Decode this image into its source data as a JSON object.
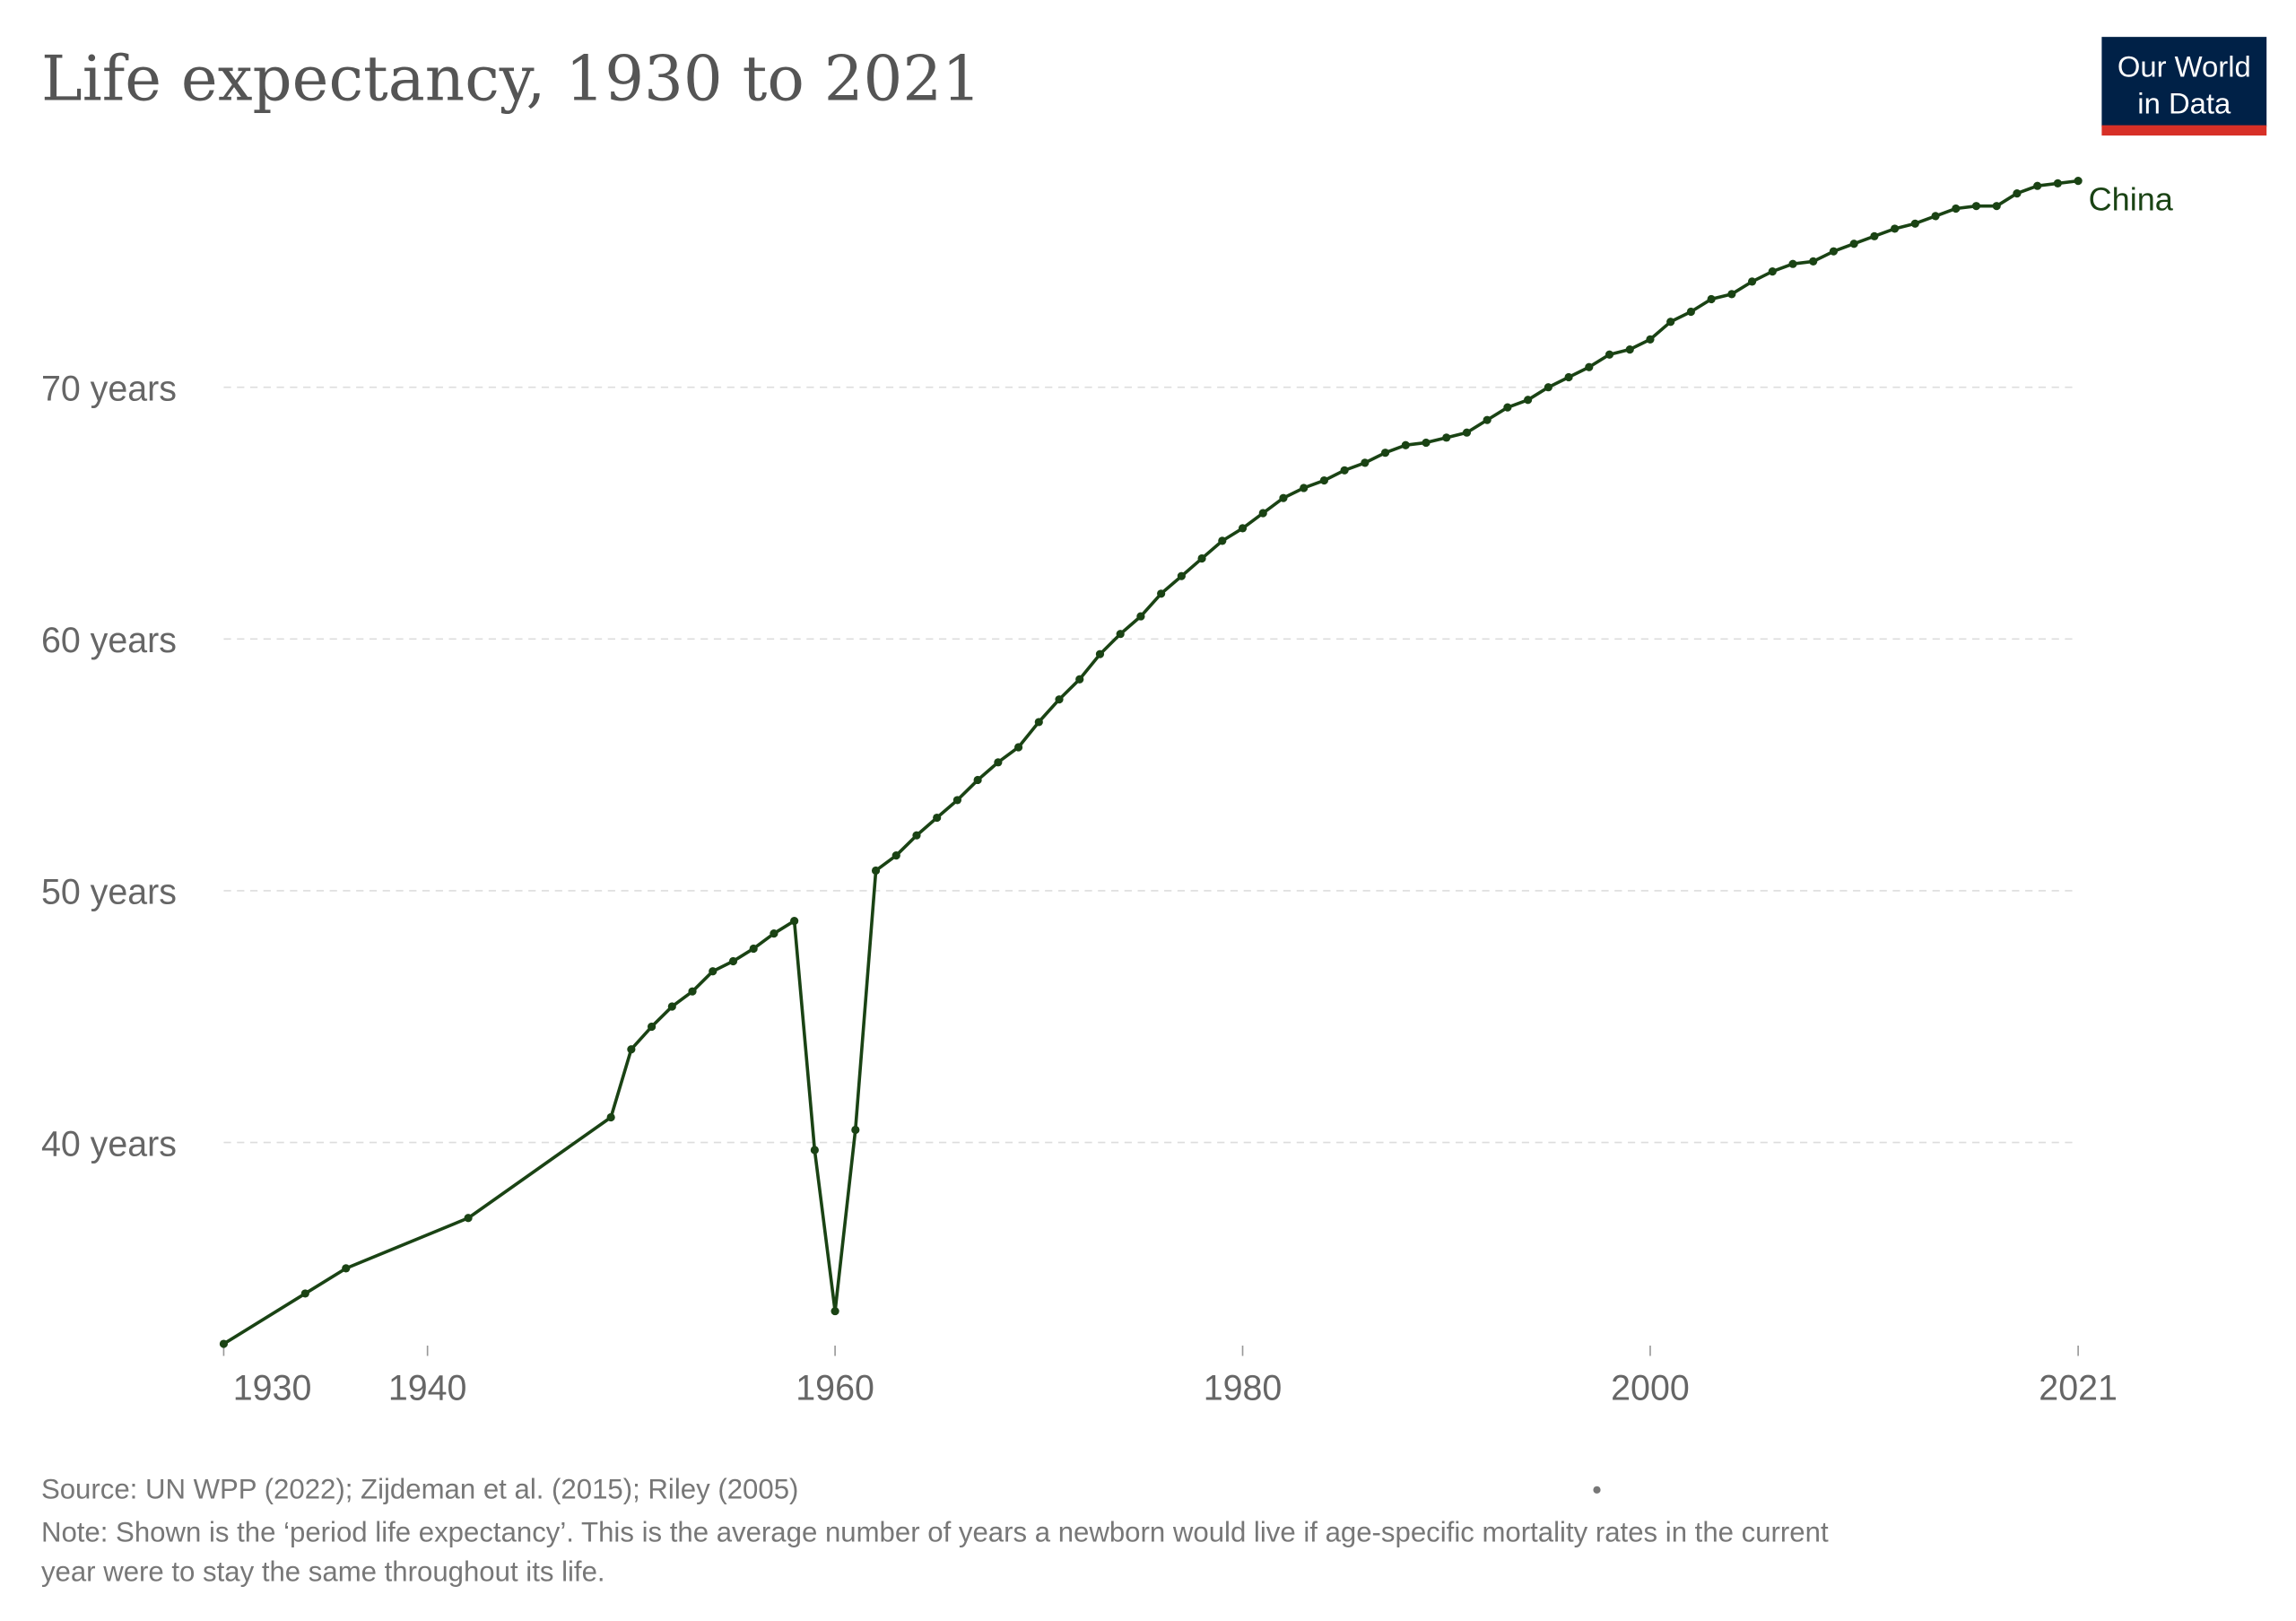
{
  "title": "Life expectancy, 1930 to 2021",
  "logo": {
    "line1": "Our World",
    "line2": "in Data",
    "bg": "#002147",
    "accent": "#d73027"
  },
  "footer": {
    "source": "Source: UN WPP (2022); Zijdeman et al. (2015); Riley (2005)",
    "note_line1": "Note: Shown is the ‘period life expectancy’. This is the average number of years a newborn would live if age-specific mortality rates in the current",
    "note_line2": "year were to stay the same throughout its life."
  },
  "chart_data": {
    "type": "line",
    "title": "Life expectancy, 1930 to 2021",
    "xlabel": "",
    "ylabel": "",
    "xlim": [
      1930,
      2021
    ],
    "ylim": [
      32,
      79
    ],
    "grid": true,
    "x_ticks": [
      {
        "value": 1930,
        "label": "1930"
      },
      {
        "value": 1940,
        "label": "1940"
      },
      {
        "value": 1960,
        "label": "1960"
      },
      {
        "value": 1980,
        "label": "1980"
      },
      {
        "value": 2000,
        "label": "2000"
      },
      {
        "value": 2021,
        "label": "2021"
      }
    ],
    "y_ticks": [
      {
        "value": 40,
        "label": "40 years"
      },
      {
        "value": 50,
        "label": "50 years"
      },
      {
        "value": 60,
        "label": "60 years"
      },
      {
        "value": 70,
        "label": "70 years"
      }
    ],
    "series": [
      {
        "name": "China",
        "color": "#1a4314",
        "x": [
          1930,
          1934,
          1936,
          1942,
          1949,
          1950,
          1951,
          1952,
          1953,
          1954,
          1955,
          1956,
          1957,
          1958,
          1959,
          1960,
          1961,
          1962,
          1963,
          1964,
          1965,
          1966,
          1967,
          1968,
          1969,
          1970,
          1971,
          1972,
          1973,
          1974,
          1975,
          1976,
          1977,
          1978,
          1979,
          1980,
          1981,
          1982,
          1983,
          1984,
          1985,
          1986,
          1987,
          1988,
          1989,
          1990,
          1991,
          1992,
          1993,
          1994,
          1995,
          1996,
          1997,
          1998,
          1999,
          2000,
          2001,
          2002,
          2003,
          2004,
          2005,
          2006,
          2007,
          2008,
          2009,
          2010,
          2011,
          2012,
          2013,
          2014,
          2015,
          2016,
          2017,
          2018,
          2019,
          2020,
          2021
        ],
        "values": [
          32.0,
          34.0,
          35.0,
          37.0,
          41.0,
          43.7,
          44.6,
          45.4,
          46.0,
          46.8,
          47.2,
          47.7,
          48.3,
          48.8,
          39.7,
          33.3,
          40.5,
          50.8,
          51.4,
          52.2,
          52.9,
          53.6,
          54.4,
          55.1,
          55.7,
          56.7,
          57.6,
          58.4,
          59.4,
          60.2,
          60.9,
          61.8,
          62.5,
          63.2,
          63.9,
          64.4,
          65.0,
          65.6,
          66.0,
          66.3,
          66.7,
          67.0,
          67.4,
          67.7,
          67.8,
          68.0,
          68.2,
          68.7,
          69.2,
          69.5,
          70.0,
          70.4,
          70.8,
          71.3,
          71.5,
          71.9,
          72.6,
          73.0,
          73.5,
          73.7,
          74.2,
          74.6,
          74.9,
          75.0,
          75.4,
          75.7,
          76.0,
          76.3,
          76.5,
          76.8,
          77.1,
          77.2,
          77.2,
          77.7,
          78.0,
          78.1,
          78.2
        ]
      }
    ]
  }
}
